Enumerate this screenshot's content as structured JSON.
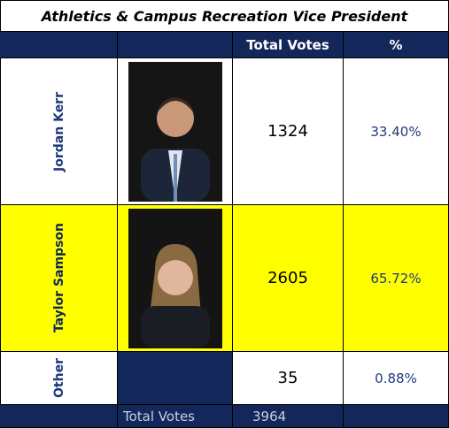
{
  "title": "Athletics & Campus Recreation Vice President",
  "header": [
    "Total Votes",
    "%"
  ],
  "rows": [
    {
      "name": "Jordan Kerr",
      "votes": 1324,
      "percent": "33.40%"
    },
    {
      "name": "Taylor Sampson",
      "votes": 2605,
      "percent": "65.72%"
    },
    {
      "name": "Other",
      "votes": 35,
      "percent": "0.88%"
    }
  ],
  "footer": {
    "label": "Total Votes",
    "total": 3964
  }
}
